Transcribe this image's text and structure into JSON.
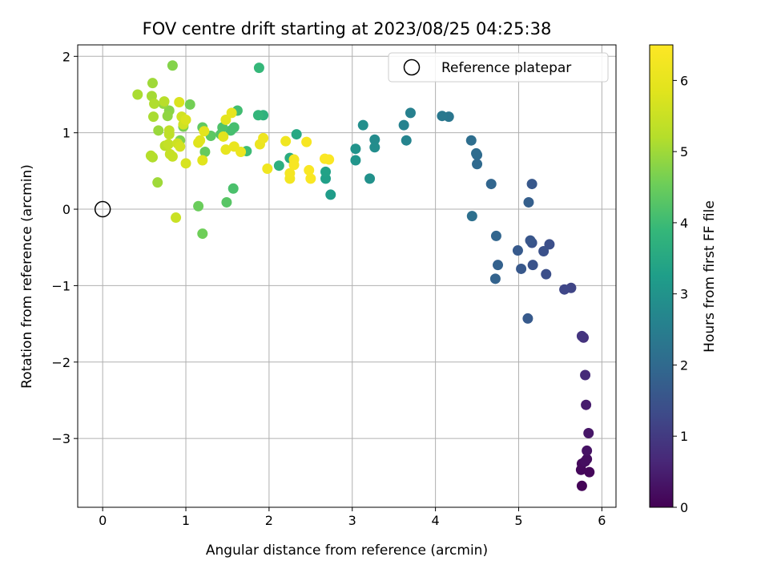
{
  "chart_data": {
    "type": "scatter",
    "title": "FOV centre drift starting at 2023/08/25 04:25:38",
    "xlabel": "Angular distance from reference (arcmin)",
    "ylabel": "Rotation from reference (arcmin)",
    "xlim": [
      -0.3,
      6.17
    ],
    "ylim": [
      -3.9,
      2.15
    ],
    "xticks": [
      0,
      1,
      2,
      3,
      4,
      5,
      6
    ],
    "yticks": [
      2,
      1,
      0,
      -1,
      -2,
      -3
    ],
    "xtick_labels": [
      "0",
      "1",
      "2",
      "3",
      "4",
      "5",
      "6"
    ],
    "ytick_labels": [
      "2",
      "1",
      "0",
      "−1",
      "−2",
      "−3"
    ],
    "grid": true,
    "legend": {
      "position": "top-right",
      "entries": [
        "Reference platepar"
      ]
    },
    "reference_point": {
      "x": 0,
      "y": 0
    },
    "colorbar": {
      "label": "Hours from first FF file",
      "colormap": "viridis",
      "range": [
        0,
        6.5
      ],
      "ticks": [
        0,
        1,
        2,
        3,
        4,
        5,
        6
      ],
      "tick_labels": [
        "0",
        "1",
        "2",
        "3",
        "4",
        "5",
        "6"
      ]
    },
    "points": [
      {
        "x": 5.76,
        "y": -3.62,
        "h": 0.05
      },
      {
        "x": 5.85,
        "y": -3.44,
        "h": 0.1
      },
      {
        "x": 5.75,
        "y": -3.41,
        "h": 0.12
      },
      {
        "x": 5.76,
        "y": -3.33,
        "h": 0.15
      },
      {
        "x": 5.82,
        "y": -3.27,
        "h": 0.2
      },
      {
        "x": 5.8,
        "y": -3.3,
        "h": 0.22
      },
      {
        "x": 5.82,
        "y": -3.16,
        "h": 0.28
      },
      {
        "x": 5.84,
        "y": -2.93,
        "h": 0.35
      },
      {
        "x": 5.81,
        "y": -2.56,
        "h": 0.45
      },
      {
        "x": 5.8,
        "y": -2.17,
        "h": 0.7
      },
      {
        "x": 5.78,
        "y": -1.68,
        "h": 0.85
      },
      {
        "x": 5.76,
        "y": -1.66,
        "h": 0.9
      },
      {
        "x": 5.63,
        "y": -1.03,
        "h": 1.2
      },
      {
        "x": 5.55,
        "y": -1.05,
        "h": 1.25
      },
      {
        "x": 5.33,
        "y": -0.85,
        "h": 1.4
      },
      {
        "x": 5.37,
        "y": -0.46,
        "h": 1.4
      },
      {
        "x": 5.3,
        "y": -0.55,
        "h": 1.45
      },
      {
        "x": 5.17,
        "y": -0.73,
        "h": 1.5
      },
      {
        "x": 5.16,
        "y": -0.44,
        "h": 1.5
      },
      {
        "x": 5.14,
        "y": -0.41,
        "h": 1.55
      },
      {
        "x": 5.03,
        "y": -0.78,
        "h": 1.6
      },
      {
        "x": 4.99,
        "y": -0.54,
        "h": 1.65
      },
      {
        "x": 5.16,
        "y": 0.33,
        "h": 1.6
      },
      {
        "x": 5.11,
        "y": -1.43,
        "h": 1.65
      },
      {
        "x": 5.12,
        "y": 0.09,
        "h": 1.75
      },
      {
        "x": 4.75,
        "y": -0.73,
        "h": 1.8
      },
      {
        "x": 4.72,
        "y": -0.91,
        "h": 1.85
      },
      {
        "x": 4.73,
        "y": -0.35,
        "h": 1.9
      },
      {
        "x": 4.67,
        "y": 0.33,
        "h": 1.9
      },
      {
        "x": 4.5,
        "y": 0.59,
        "h": 2.0
      },
      {
        "x": 4.5,
        "y": 0.71,
        "h": 2.0
      },
      {
        "x": 4.49,
        "y": 0.73,
        "h": 2.05
      },
      {
        "x": 4.43,
        "y": 0.9,
        "h": 2.1
      },
      {
        "x": 4.44,
        "y": -0.09,
        "h": 2.15
      },
      {
        "x": 4.16,
        "y": 1.21,
        "h": 2.3
      },
      {
        "x": 4.08,
        "y": 1.22,
        "h": 2.35
      },
      {
        "x": 3.7,
        "y": 1.26,
        "h": 2.55
      },
      {
        "x": 3.62,
        "y": 1.1,
        "h": 2.6
      },
      {
        "x": 3.65,
        "y": 0.9,
        "h": 2.65
      },
      {
        "x": 3.27,
        "y": 0.91,
        "h": 2.8
      },
      {
        "x": 3.27,
        "y": 0.81,
        "h": 2.85
      },
      {
        "x": 3.13,
        "y": 1.1,
        "h": 2.9
      },
      {
        "x": 3.21,
        "y": 0.4,
        "h": 2.95
      },
      {
        "x": 3.04,
        "y": 0.79,
        "h": 3.0
      },
      {
        "x": 3.04,
        "y": 0.64,
        "h": 3.05
      },
      {
        "x": 2.74,
        "y": 0.19,
        "h": 3.2
      },
      {
        "x": 2.68,
        "y": 0.4,
        "h": 3.3
      },
      {
        "x": 2.68,
        "y": 0.49,
        "h": 3.35
      },
      {
        "x": 2.33,
        "y": 0.98,
        "h": 3.5
      },
      {
        "x": 2.25,
        "y": 0.67,
        "h": 3.6
      },
      {
        "x": 2.12,
        "y": 0.57,
        "h": 3.7
      },
      {
        "x": 1.93,
        "y": 1.23,
        "h": 3.75
      },
      {
        "x": 1.87,
        "y": 1.23,
        "h": 3.85
      },
      {
        "x": 1.88,
        "y": 1.85,
        "h": 3.9
      },
      {
        "x": 1.73,
        "y": 0.76,
        "h": 4.0
      },
      {
        "x": 1.62,
        "y": 1.29,
        "h": 4.05
      },
      {
        "x": 1.58,
        "y": 1.07,
        "h": 4.1
      },
      {
        "x": 1.54,
        "y": 1.03,
        "h": 4.1
      },
      {
        "x": 1.57,
        "y": 0.27,
        "h": 4.15
      },
      {
        "x": 1.44,
        "y": 1.07,
        "h": 4.2
      },
      {
        "x": 1.42,
        "y": 0.98,
        "h": 4.25
      },
      {
        "x": 1.49,
        "y": 0.09,
        "h": 4.3
      },
      {
        "x": 1.3,
        "y": 0.96,
        "h": 4.35
      },
      {
        "x": 1.2,
        "y": 1.07,
        "h": 4.4
      },
      {
        "x": 1.23,
        "y": 0.75,
        "h": 4.45
      },
      {
        "x": 1.15,
        "y": 0.04,
        "h": 4.5
      },
      {
        "x": 1.2,
        "y": -0.32,
        "h": 4.55
      },
      {
        "x": 1.05,
        "y": 1.37,
        "h": 4.6
      },
      {
        "x": 0.97,
        "y": 1.08,
        "h": 4.65
      },
      {
        "x": 0.93,
        "y": 0.9,
        "h": 4.7
      },
      {
        "x": 0.84,
        "y": 1.88,
        "h": 4.75
      },
      {
        "x": 0.8,
        "y": 1.29,
        "h": 4.8
      },
      {
        "x": 0.78,
        "y": 1.22,
        "h": 4.85
      },
      {
        "x": 0.73,
        "y": 1.38,
        "h": 4.9
      },
      {
        "x": 0.67,
        "y": 1.03,
        "h": 4.95
      },
      {
        "x": 0.66,
        "y": 0.35,
        "h": 5.0
      },
      {
        "x": 0.6,
        "y": 1.65,
        "h": 5.0
      },
      {
        "x": 0.59,
        "y": 1.48,
        "h": 5.05
      },
      {
        "x": 0.42,
        "y": 1.5,
        "h": 5.1
      },
      {
        "x": 0.61,
        "y": 1.21,
        "h": 5.1
      },
      {
        "x": 0.62,
        "y": 1.38,
        "h": 5.15
      },
      {
        "x": 0.6,
        "y": 0.68,
        "h": 5.15
      },
      {
        "x": 0.58,
        "y": 0.7,
        "h": 5.2
      },
      {
        "x": 0.74,
        "y": 1.41,
        "h": 5.25
      },
      {
        "x": 0.75,
        "y": 0.83,
        "h": 5.3
      },
      {
        "x": 0.8,
        "y": 0.98,
        "h": 5.35
      },
      {
        "x": 0.8,
        "y": 1.03,
        "h": 5.35
      },
      {
        "x": 0.79,
        "y": 0.85,
        "h": 5.4
      },
      {
        "x": 0.84,
        "y": 0.69,
        "h": 5.45
      },
      {
        "x": 0.81,
        "y": 0.72,
        "h": 5.45
      },
      {
        "x": 0.88,
        "y": -0.11,
        "h": 5.5
      },
      {
        "x": 0.9,
        "y": 0.86,
        "h": 5.55
      },
      {
        "x": 0.95,
        "y": 1.21,
        "h": 5.6
      },
      {
        "x": 0.97,
        "y": 1.11,
        "h": 5.6
      },
      {
        "x": 0.93,
        "y": 0.82,
        "h": 5.65
      },
      {
        "x": 1.0,
        "y": 0.6,
        "h": 5.7
      },
      {
        "x": 1.0,
        "y": 1.17,
        "h": 5.75
      },
      {
        "x": 0.92,
        "y": 1.4,
        "h": 5.75
      },
      {
        "x": 1.15,
        "y": 0.87,
        "h": 5.8
      },
      {
        "x": 1.17,
        "y": 0.9,
        "h": 5.85
      },
      {
        "x": 1.2,
        "y": 0.64,
        "h": 5.85
      },
      {
        "x": 1.22,
        "y": 1.02,
        "h": 5.9
      },
      {
        "x": 1.45,
        "y": 0.95,
        "h": 5.9
      },
      {
        "x": 1.48,
        "y": 1.17,
        "h": 5.95
      },
      {
        "x": 1.48,
        "y": 0.78,
        "h": 6.0
      },
      {
        "x": 1.55,
        "y": 1.26,
        "h": 6.0
      },
      {
        "x": 1.58,
        "y": 0.82,
        "h": 6.05
      },
      {
        "x": 1.66,
        "y": 0.75,
        "h": 6.1
      },
      {
        "x": 1.89,
        "y": 0.85,
        "h": 6.1
      },
      {
        "x": 1.93,
        "y": 0.93,
        "h": 6.15
      },
      {
        "x": 1.98,
        "y": 0.53,
        "h": 6.2
      },
      {
        "x": 2.2,
        "y": 0.89,
        "h": 6.2
      },
      {
        "x": 2.25,
        "y": 0.4,
        "h": 6.25
      },
      {
        "x": 2.25,
        "y": 0.47,
        "h": 6.3
      },
      {
        "x": 2.3,
        "y": 0.65,
        "h": 6.3
      },
      {
        "x": 2.3,
        "y": 0.58,
        "h": 6.35
      },
      {
        "x": 2.45,
        "y": 0.88,
        "h": 6.35
      },
      {
        "x": 2.48,
        "y": 0.51,
        "h": 6.4
      },
      {
        "x": 2.5,
        "y": 0.4,
        "h": 6.4
      },
      {
        "x": 2.67,
        "y": 0.66,
        "h": 6.45
      },
      {
        "x": 2.72,
        "y": 0.65,
        "h": 6.45
      }
    ]
  }
}
